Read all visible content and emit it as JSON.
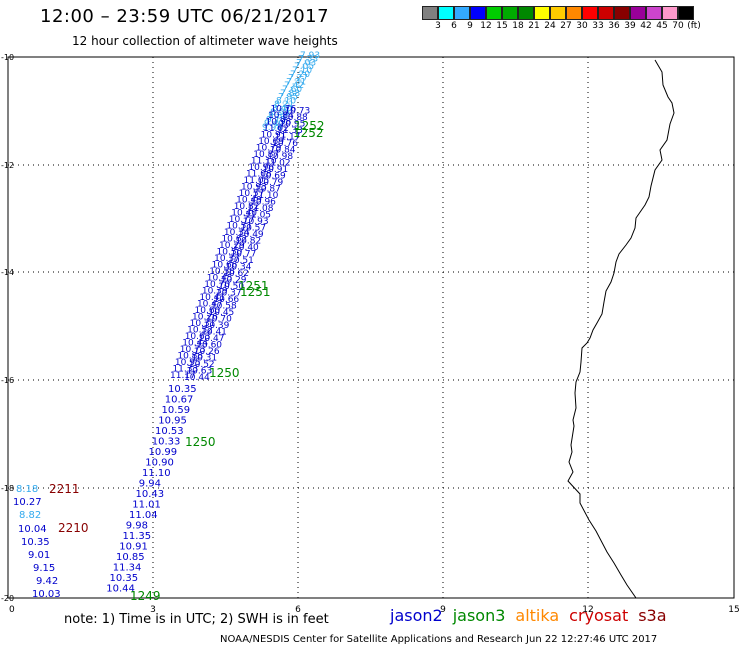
{
  "header": {
    "title": "12:00 – 23:59 UTC 06/21/2017",
    "subtitle": "12 hour collection of altimeter wave heights"
  },
  "colorbar": {
    "unit": "(ft)",
    "ticks": [
      "3",
      "6",
      "9",
      "12",
      "15",
      "18",
      "21",
      "24",
      "27",
      "30",
      "33",
      "36",
      "39",
      "42",
      "45",
      "70"
    ],
    "colors": [
      "#808080",
      "#00ffff",
      "#33aaff",
      "#0000ff",
      "#00cc00",
      "#00aa00",
      "#008800",
      "#ffff00",
      "#ffcc00",
      "#ff8800",
      "#ff0000",
      "#cc0000",
      "#880000",
      "#990099",
      "#cc44cc",
      "#ff99cc",
      "#000000"
    ]
  },
  "map": {
    "x_ticks": [
      "0",
      "3",
      "6",
      "9",
      "12",
      "15"
    ],
    "y_ticks": [
      "-10",
      "-12",
      "-14",
      "-16",
      "-18",
      "-20"
    ],
    "colors": {
      "jason2": "#0000cc",
      "cyan": "#33aaee",
      "jason3": "#008800",
      "cryosat": "#880000"
    },
    "track_lower_values": [
      "10.35",
      "10.67",
      "10.59",
      "10.95",
      "10.53",
      "10.33",
      "10.99",
      "10.90",
      "11.10",
      "9.94",
      "10.43",
      "11.01",
      "11.04",
      "9.98",
      "11.35",
      "10.91",
      "10.85",
      "11.34",
      "10.35",
      "10.44"
    ],
    "track_upper_values": [
      "11.17",
      "11.33",
      "10.95",
      "10.88",
      "10.73",
      "10.44",
      "10.63",
      "10.52",
      "10.31",
      "10.26",
      "10.60",
      "10.47",
      "10.41",
      "10.39",
      "10.70",
      "10.45",
      "10.58",
      "10.66",
      "10.37",
      "10.50",
      "10.29",
      "10.62",
      "10.34",
      "10.51",
      "10.77",
      "10.40",
      "10.82",
      "10.49",
      "10.57",
      "10.93",
      "11.05",
      "11.08",
      "10.96",
      "11.10",
      "10.87",
      "10.79",
      "10.69",
      "10.91",
      "11.02",
      "10.98",
      "10.84",
      "10.76"
    ],
    "track_cyan_values": [
      "9.98",
      "9.40",
      "9.15",
      "8.88",
      "8.55",
      "8.40",
      "8.21",
      "8.10",
      "7.95",
      "7.88",
      "7.60",
      "7.42",
      "7.31",
      "7.27",
      "7.20",
      "7.10",
      "7.05",
      "7.03",
      "7.33",
      "7.93"
    ],
    "left_column_cryosat": [
      "2211",
      "2210"
    ],
    "left_column_values": [
      "8.18",
      "10.27",
      "8.82",
      "10.04",
      "10.35",
      "9.01",
      "9.15",
      "9.42",
      "10.03"
    ],
    "pass_labels": [
      "1252",
      "1252",
      "1251",
      "1251",
      "1250",
      "1250",
      "1249"
    ]
  },
  "footer": {
    "note": "note: 1) Time is in UTC; 2) SWH is in feet",
    "legend": [
      {
        "label": "jason2",
        "color": "#0000cc"
      },
      {
        "label": "jason3",
        "color": "#008800"
      },
      {
        "label": "altika",
        "color": "#ff8800"
      },
      {
        "label": "cryosat",
        "color": "#cc0000"
      },
      {
        "label": "s3a",
        "color": "#880000"
      }
    ],
    "credit": "NOAA/NESDIS Center for Satellite Applications and Research    Jun 22 12:27:46 UTC 2017"
  }
}
